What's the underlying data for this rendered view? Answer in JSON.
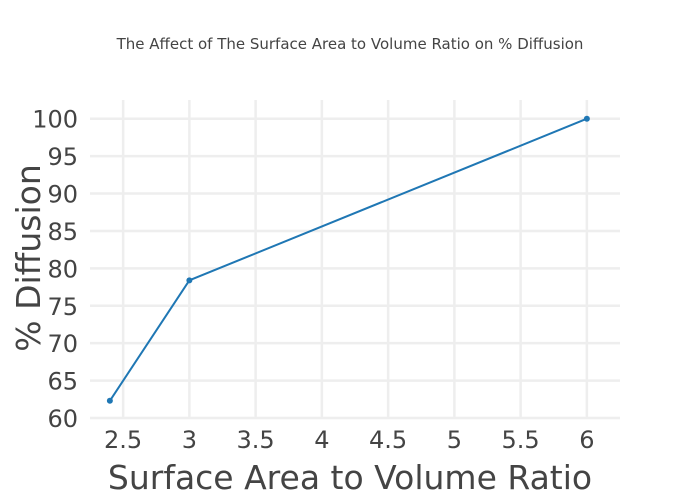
{
  "chart_data": {
    "type": "line",
    "title": "The Affect of The Surface Area to Volume Ratio on % Diffusion",
    "xlabel": "Surface Area to Volume Ratio",
    "ylabel": "% Diffusion",
    "x": [
      2.4,
      3,
      6
    ],
    "y": [
      62.3,
      78.4,
      100
    ],
    "xlim": [
      2.25,
      6.25
    ],
    "ylim": [
      60,
      102.5
    ],
    "xticks": [
      2.5,
      3,
      3.5,
      4,
      4.5,
      5,
      5.5,
      6
    ],
    "xtick_labels": [
      "2.5",
      "3",
      "3.5",
      "4",
      "4.5",
      "5",
      "5.5",
      "6"
    ],
    "yticks": [
      60,
      65,
      70,
      75,
      80,
      85,
      90,
      95,
      100
    ],
    "ytick_labels": [
      "60",
      "65",
      "70",
      "75",
      "80",
      "85",
      "90",
      "95",
      "100"
    ],
    "grid": true,
    "line_color": "#1f77b4",
    "grid_color": "#eeeeee",
    "text_color": "#444444"
  }
}
